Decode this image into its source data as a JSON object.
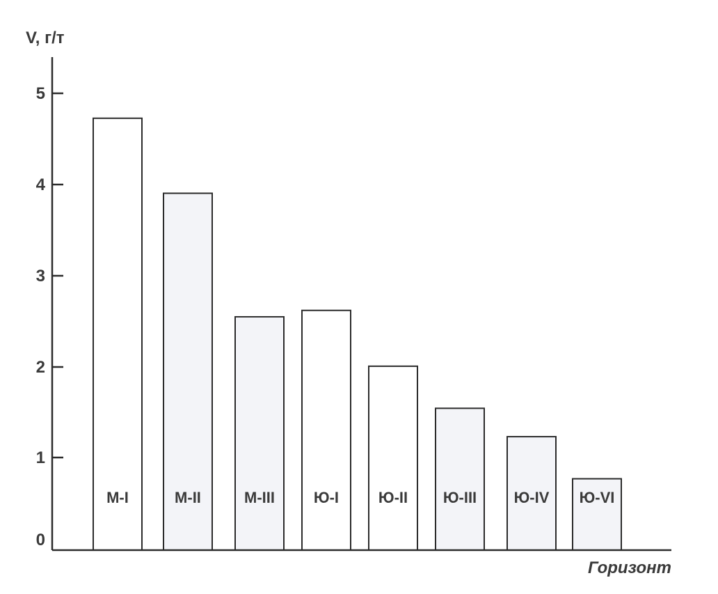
{
  "chart_data": {
    "type": "bar",
    "ylabel": "V, г/т",
    "xlabel": "Горизонт",
    "ylim": [
      0,
      5.5
    ],
    "yticks": [
      "0",
      "1",
      "2",
      "3",
      "4",
      "5"
    ],
    "categories": [
      "М-I",
      "М-II",
      "М-III",
      "Ю-I",
      "Ю-II",
      "Ю-III",
      "Ю-IV",
      "Ю-VI"
    ],
    "values": [
      4.72,
      3.9,
      2.55,
      2.62,
      2.01,
      1.55,
      1.24,
      0.78
    ],
    "grid": false,
    "colors": {
      "axis": "#2b2b2b",
      "text": "#3a3a3a",
      "bar_fill_white": "#ffffff",
      "bar_fill_grey": "#f3f4f8"
    },
    "bar_fills": [
      "white",
      "grey",
      "grey",
      "white",
      "white",
      "grey",
      "grey",
      "grey"
    ]
  }
}
